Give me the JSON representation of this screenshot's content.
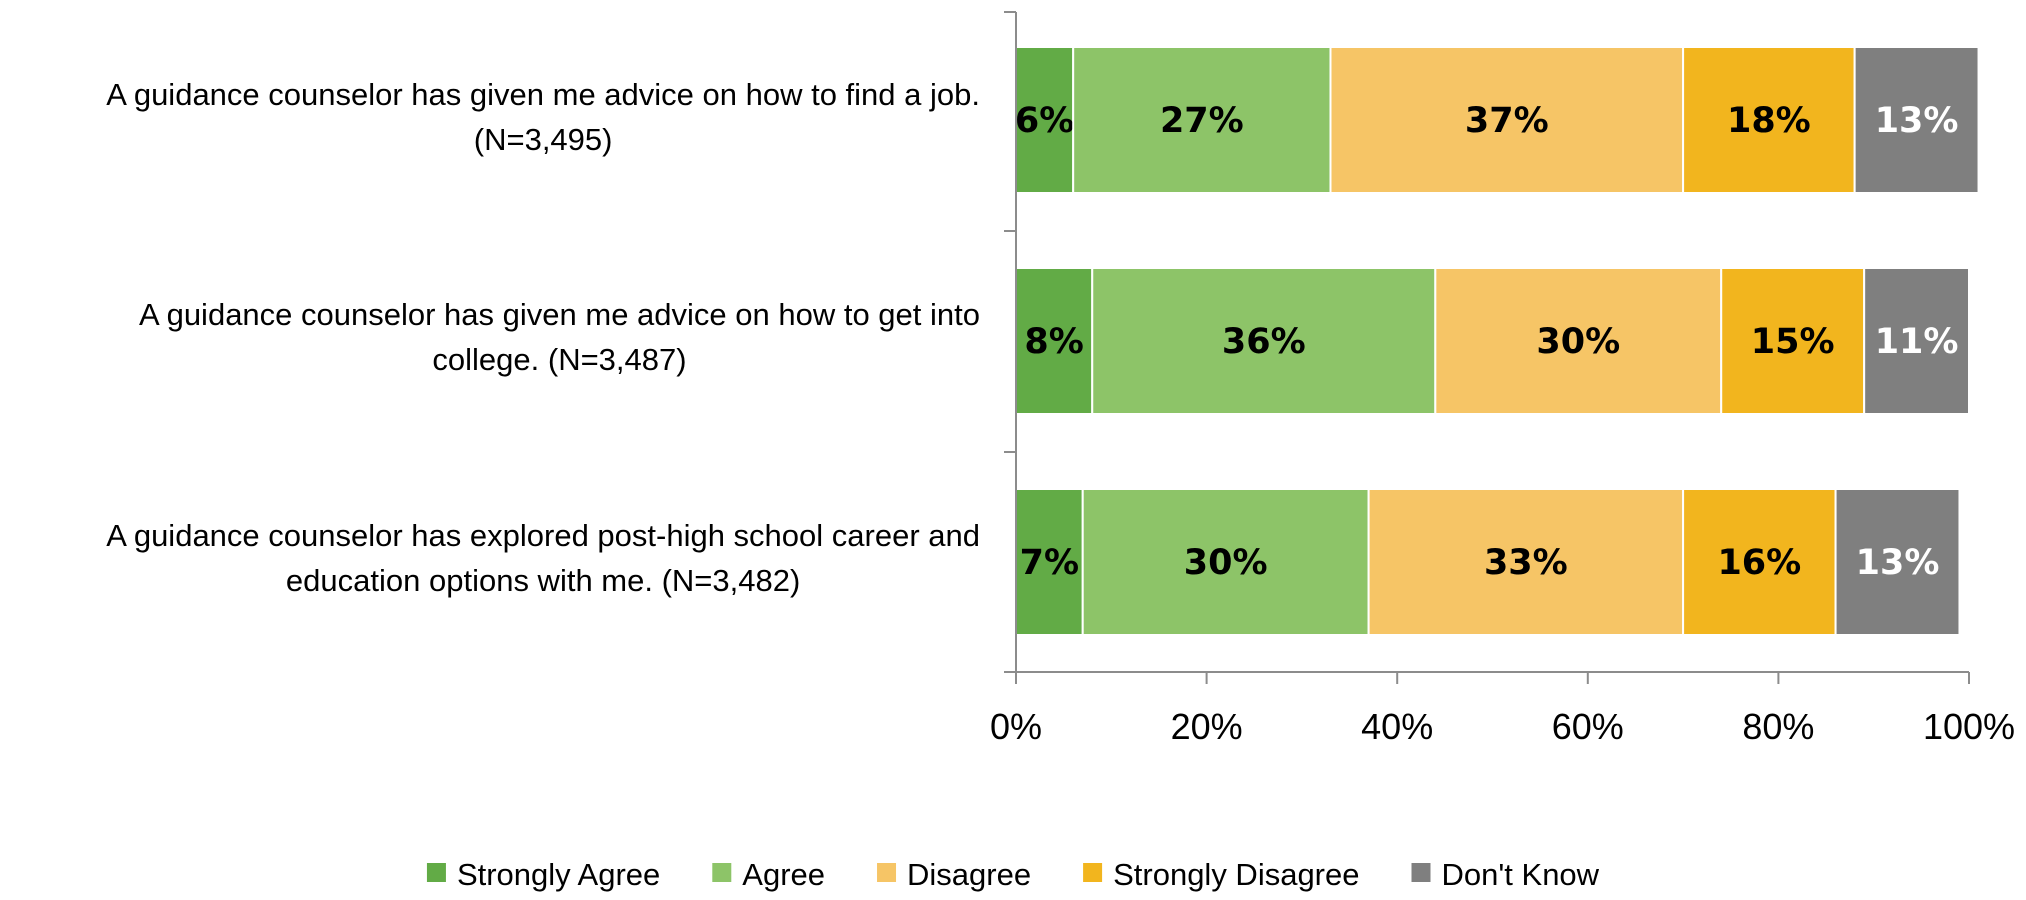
{
  "chart_data": {
    "type": "bar",
    "orientation": "horizontal",
    "stacked": true,
    "percent_stacked": true,
    "title": "",
    "xlabel": "",
    "ylabel": "",
    "xlim": [
      0,
      100
    ],
    "x_ticks": [
      "0%",
      "20%",
      "40%",
      "60%",
      "80%",
      "100%"
    ],
    "grid": false,
    "legend_position": "bottom",
    "categories": [
      [
        "A guidance counselor has given me advice on how to find a job.",
        "(N=3,495)"
      ],
      [
        "A guidance counselor has given me advice on how to get into",
        "college. (N=3,487)"
      ],
      [
        "A guidance counselor has explored post-high school career and",
        "education options with me. (N=3,482)"
      ]
    ],
    "series": [
      {
        "name": "Strongly Agree",
        "color": "#62ab46",
        "label_color": "#000000",
        "values": [
          6,
          8,
          7
        ]
      },
      {
        "name": "Agree",
        "color": "#8dc468",
        "label_color": "#000000",
        "values": [
          27,
          36,
          30
        ]
      },
      {
        "name": "Disagree",
        "color": "#f6c566",
        "label_color": "#000000",
        "values": [
          37,
          30,
          33
        ]
      },
      {
        "name": "Strongly Disagree",
        "color": "#f2b51e",
        "label_color": "#000000",
        "values": [
          18,
          15,
          16
        ]
      },
      {
        "name": "Don't Know",
        "color": "#7f7f7f",
        "label_color": "#ffffff",
        "values": [
          13,
          11,
          13
        ]
      }
    ]
  }
}
